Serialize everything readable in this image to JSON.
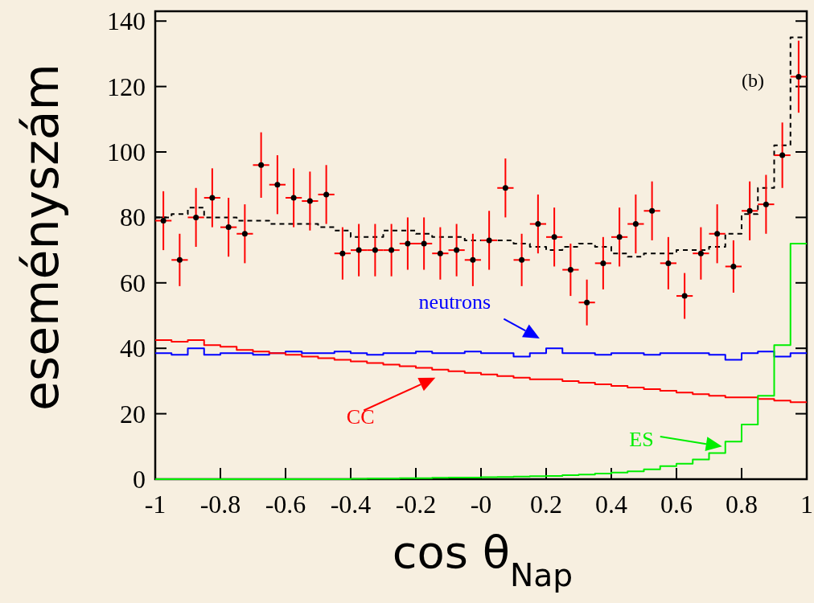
{
  "chart_data": {
    "type": "step",
    "xlabel": "cos θ$_{Nap}$",
    "ylabel": "eseményszám",
    "annotations": [
      "(b)"
    ],
    "xlim": [
      -1,
      1
    ],
    "ylim": [
      0,
      143
    ],
    "xticks": [
      -1,
      -0.8,
      -0.6,
      -0.4,
      -0.2,
      {
        "value": 0,
        "label": "-0"
      },
      0.2,
      0.4,
      0.6,
      0.8,
      1
    ],
    "yticks": [
      0,
      20,
      40,
      60,
      80,
      100,
      120,
      140
    ],
    "grid": false,
    "x": [
      -1,
      -0.95,
      -0.9,
      -0.85,
      -0.8,
      -0.75,
      -0.7,
      -0.65,
      -0.6,
      -0.55,
      -0.5,
      -0.45,
      -0.4,
      -0.35,
      -0.3,
      -0.25,
      -0.2,
      -0.15,
      -0.1,
      -0.05,
      0,
      0.05,
      0.1,
      0.15,
      0.2,
      0.25,
      0.3,
      0.35,
      0.4,
      0.45,
      0.5,
      0.55,
      0.6,
      0.65,
      0.7,
      0.75,
      0.8,
      0.85,
      0.9,
      0.95,
      1
    ],
    "series": [
      {
        "color": "#000000",
        "line_style": "dashed",
        "values": [
          80,
          81,
          83,
          80,
          80,
          79,
          79,
          78,
          78,
          78,
          77,
          76,
          74,
          74,
          76,
          76,
          75,
          74,
          74,
          73,
          73,
          73,
          72,
          71,
          70,
          71,
          72,
          71,
          69,
          68,
          69,
          69,
          70,
          70,
          71,
          75,
          81,
          89,
          102,
          135,
          135
        ]
      },
      {
        "name": "neutrons",
        "color": "#0000ff",
        "values": [
          38.5,
          38,
          40,
          38,
          38.5,
          38.5,
          38,
          38.5,
          39,
          38.5,
          38.5,
          39,
          38.5,
          38,
          38.5,
          38.5,
          39,
          38.5,
          38.5,
          39,
          38.5,
          38.5,
          37.5,
          38.5,
          40,
          38.5,
          38.5,
          38,
          38.5,
          38.5,
          38,
          38.5,
          38.5,
          38.5,
          38,
          36.5,
          38.5,
          39,
          37.5,
          38.5,
          38.5
        ]
      },
      {
        "name": "CC",
        "color": "#ff0000",
        "values": [
          42.5,
          42,
          42.5,
          41,
          40.5,
          39.5,
          39,
          38.5,
          38,
          37.5,
          37,
          36.5,
          36,
          35.5,
          35,
          34.5,
          34,
          33.5,
          33,
          32.5,
          32,
          31.5,
          31,
          30.5,
          30.5,
          30,
          29.5,
          29,
          28.5,
          28,
          27.5,
          27,
          26.5,
          26,
          25.5,
          25,
          25,
          24.5,
          24,
          23.5,
          23.5
        ]
      },
      {
        "name": "ES",
        "color": "#00ee00",
        "values": [
          0,
          0,
          0,
          0,
          0,
          0,
          0,
          0,
          0,
          0,
          0,
          0,
          0.1,
          0.2,
          0.2,
          0.3,
          0.3,
          0.4,
          0.5,
          0.5,
          0.6,
          0.7,
          0.8,
          0.9,
          1,
          1.2,
          1.4,
          1.7,
          2,
          2.4,
          3,
          4,
          4.7,
          6,
          8,
          11.5,
          16.7,
          25.5,
          41,
          72,
          72
        ]
      },
      {
        "type": "scatter",
        "color": "#000000",
        "marker": "circle",
        "x": [
          -0.975,
          -0.925,
          -0.875,
          -0.825,
          -0.775,
          -0.725,
          -0.675,
          -0.625,
          -0.575,
          -0.525,
          -0.475,
          -0.425,
          -0.375,
          -0.325,
          -0.275,
          -0.225,
          -0.175,
          -0.125,
          -0.075,
          -0.025,
          0.025,
          0.075,
          0.125,
          0.175,
          0.225,
          0.275,
          0.325,
          0.375,
          0.425,
          0.475,
          0.525,
          0.575,
          0.625,
          0.675,
          0.725,
          0.775,
          0.825,
          0.875,
          0.925,
          0.975
        ],
        "values": [
          79,
          67,
          80,
          86,
          77,
          75,
          96,
          90,
          86,
          85,
          87,
          69,
          70,
          70,
          70,
          72,
          72,
          69,
          70,
          67,
          73,
          89,
          67,
          78,
          74,
          64,
          54,
          66,
          74,
          78,
          82,
          66,
          56,
          69,
          75,
          65,
          82,
          84,
          99,
          123
        ],
        "errors": [
          9,
          8,
          9,
          9,
          9,
          9,
          10,
          9,
          9,
          9,
          9,
          8,
          8,
          8,
          8,
          8,
          8,
          8,
          8,
          8,
          9,
          9,
          8,
          9,
          9,
          8,
          7,
          8,
          9,
          9,
          9,
          8,
          7,
          8,
          9,
          8,
          9,
          9,
          10,
          11
        ],
        "xerrors": [
          0.025,
          0.025,
          0.025,
          0.025,
          0.025,
          0.025,
          0.025,
          0.025,
          0.025,
          0.025,
          0.025,
          0.025,
          0.025,
          0.025,
          0.025,
          0.025,
          0.025,
          0.025,
          0.025,
          0.025,
          0.025,
          0.025,
          0.025,
          0.025,
          0.025,
          0.025,
          0.025,
          0.025,
          0.025,
          0.025,
          0.025,
          0.025,
          0.025,
          0.025,
          0.025,
          0.025,
          0.025,
          0.025,
          0.025,
          0.025
        ]
      }
    ]
  }
}
